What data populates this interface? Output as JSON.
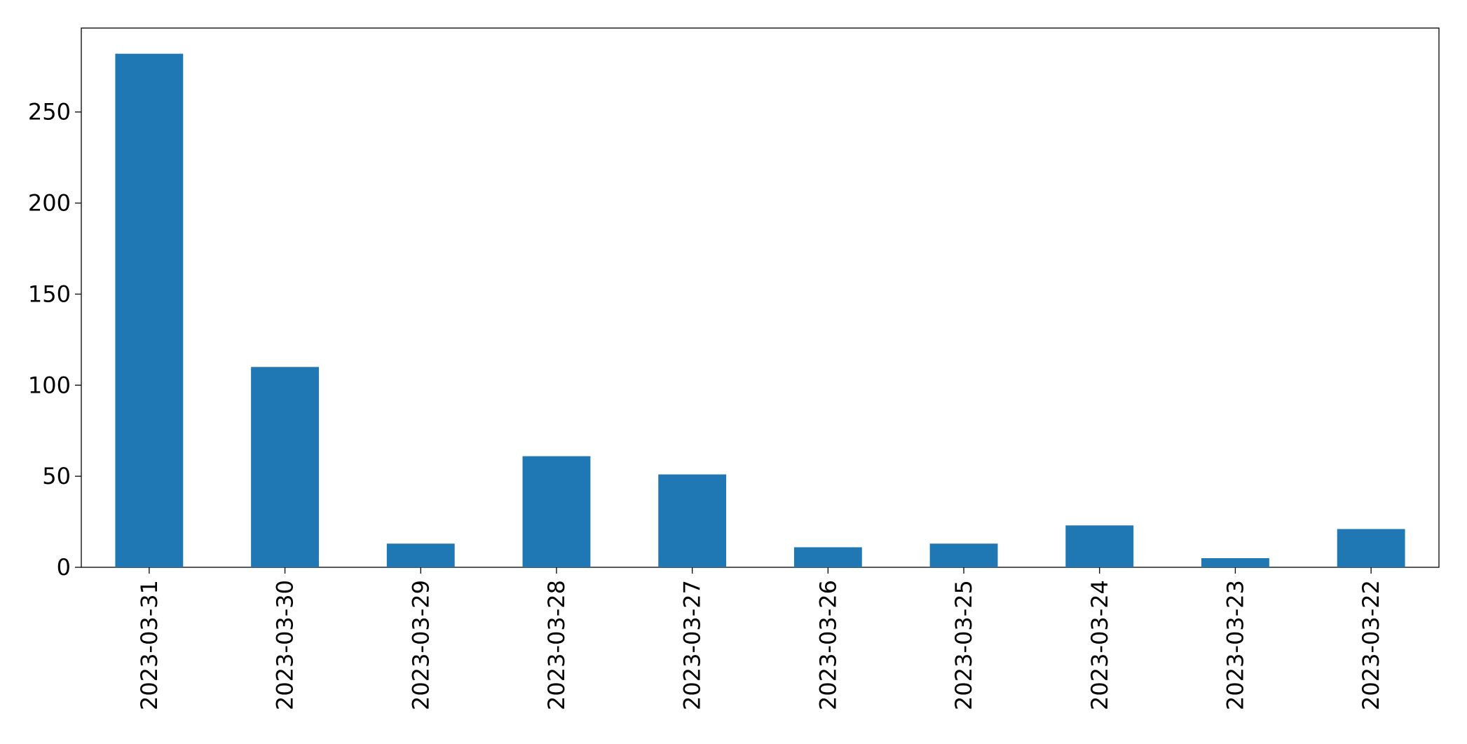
{
  "chart_data": {
    "type": "bar",
    "categories": [
      "2023-03-31",
      "2023-03-30",
      "2023-03-29",
      "2023-03-28",
      "2023-03-27",
      "2023-03-26",
      "2023-03-25",
      "2023-03-24",
      "2023-03-23",
      "2023-03-22"
    ],
    "values": [
      282,
      110,
      13,
      61,
      51,
      11,
      13,
      23,
      5,
      21
    ],
    "color": "#1f77b4",
    "ylim": [
      0,
      296.1
    ],
    "yticks": [
      0,
      50,
      100,
      150,
      200,
      250
    ],
    "grid": false
  }
}
